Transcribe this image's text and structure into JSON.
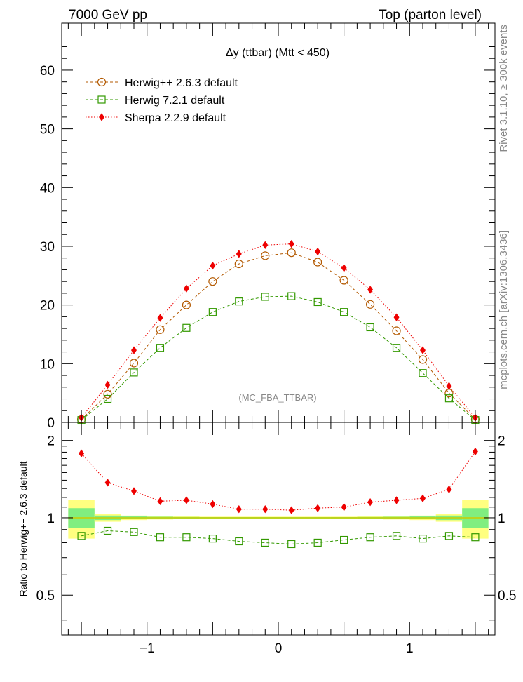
{
  "header": {
    "left_title": "7000 GeV pp",
    "right_title": "Top (parton level)"
  },
  "side_labels": {
    "rivet": "Rivet 3.1.10, ≥ 300k events",
    "mcplots": "mcplots.cern.ch [arXiv:1306.3436]"
  },
  "chart_data": [
    {
      "type": "line",
      "title": "Δy (ttbar) (Mtt < 450)",
      "watermark": "(MC_FBA_TTBAR)",
      "xlim": [
        -1.65,
        1.65
      ],
      "ylim": [
        0,
        68
      ],
      "yticks": [
        0,
        10,
        20,
        30,
        40,
        50,
        60
      ],
      "legend_position": "top-left",
      "x": [
        -1.5,
        -1.3,
        -1.1,
        -0.9,
        -0.7,
        -0.5,
        -0.3,
        -0.1,
        0.1,
        0.3,
        0.5,
        0.7,
        0.9,
        1.1,
        1.3,
        1.5
      ],
      "series": [
        {
          "name": "Herwig++ 2.6.3 default",
          "color": "#b35900",
          "marker": "open-circle",
          "line": "dashed",
          "values": [
            0.5,
            4.8,
            10.1,
            15.8,
            20.0,
            24.0,
            27.0,
            28.4,
            28.9,
            27.3,
            24.2,
            20.1,
            15.6,
            10.7,
            5.0,
            0.5
          ]
        },
        {
          "name": "Herwig 7.2.1 default",
          "color": "#339900",
          "marker": "open-square",
          "line": "dashed",
          "values": [
            0.4,
            4.0,
            8.5,
            12.7,
            16.1,
            18.8,
            20.6,
            21.4,
            21.5,
            20.5,
            18.8,
            16.2,
            12.7,
            8.4,
            4.1,
            0.4
          ]
        },
        {
          "name": "Sherpa 2.2.9 default",
          "color": "#ee0000",
          "marker": "filled-diamond",
          "line": "dotted",
          "values": [
            0.8,
            6.4,
            12.3,
            17.8,
            22.8,
            26.7,
            28.7,
            30.2,
            30.4,
            29.1,
            26.3,
            22.6,
            17.9,
            12.3,
            6.2,
            0.8
          ]
        }
      ]
    },
    {
      "type": "line",
      "ylabel": "Ratio to Herwig++ 2.6.3 default",
      "ylim": [
        0.35,
        2.35
      ],
      "yscale": "log",
      "yticks": [
        0.5,
        1,
        2
      ],
      "xticks": [
        -1,
        0,
        1
      ],
      "xticklabels": [
        "−1",
        "0",
        "1"
      ],
      "x": [
        -1.5,
        -1.3,
        -1.1,
        -0.9,
        -0.7,
        -0.5,
        -0.3,
        -0.1,
        0.1,
        0.3,
        0.5,
        0.7,
        0.9,
        1.1,
        1.3,
        1.5
      ],
      "bins": [
        -1.6,
        -1.4,
        -1.2,
        -1.0,
        -0.8,
        -0.6,
        -0.4,
        -0.2,
        0.0,
        0.2,
        0.4,
        0.6,
        0.8,
        1.0,
        1.2,
        1.4,
        1.6
      ],
      "band_yellow_halfwidth": [
        0.17,
        0.035,
        0.02,
        0.015,
        0.012,
        0.01,
        0.01,
        0.01,
        0.01,
        0.01,
        0.01,
        0.012,
        0.015,
        0.02,
        0.035,
        0.17
      ],
      "band_green_halfwidth": [
        0.09,
        0.02,
        0.012,
        0.009,
        0.007,
        0.006,
        0.006,
        0.006,
        0.006,
        0.006,
        0.006,
        0.007,
        0.009,
        0.012,
        0.02,
        0.09
      ],
      "reference_color": "#cccc00",
      "band_yellow_color": "#ffff80",
      "band_green_color": "#80ee80",
      "series": [
        {
          "name": "Herwig 7.2.1 default",
          "color": "#339900",
          "marker": "open-square",
          "line": "dashed",
          "values": [
            0.85,
            0.89,
            0.88,
            0.84,
            0.84,
            0.83,
            0.81,
            0.8,
            0.79,
            0.8,
            0.82,
            0.84,
            0.85,
            0.83,
            0.85,
            0.84
          ]
        },
        {
          "name": "Sherpa 2.2.9 default",
          "color": "#ee0000",
          "marker": "filled-diamond",
          "line": "dotted",
          "values": [
            1.78,
            1.37,
            1.27,
            1.16,
            1.17,
            1.13,
            1.08,
            1.08,
            1.07,
            1.09,
            1.1,
            1.15,
            1.17,
            1.19,
            1.29,
            1.81
          ]
        }
      ]
    }
  ]
}
